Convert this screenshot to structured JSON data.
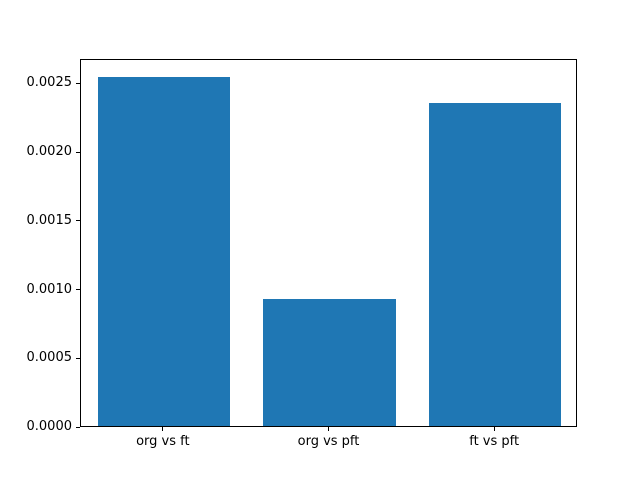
{
  "figure": {
    "background": "#ffffff",
    "axes_color": "#000000",
    "text_color": "#000000"
  },
  "chart_data": {
    "type": "bar",
    "title": "",
    "xlabel": "",
    "ylabel": "",
    "categories": [
      "org vs ft",
      "org vs pft",
      "ft vs pft"
    ],
    "values": [
      0.00255,
      0.00093,
      0.00236
    ],
    "bar_color": "#1f77b4",
    "bar_width_fraction": 0.8,
    "ylim": [
      0,
      0.0026775
    ],
    "ytick_values": [
      0.0,
      0.0005,
      0.001,
      0.0015,
      0.002,
      0.0025
    ],
    "ytick_labels": [
      "0.0000",
      "0.0005",
      "0.0010",
      "0.0015",
      "0.0020",
      "0.0025"
    ],
    "grid": false,
    "legend_position": "none"
  }
}
